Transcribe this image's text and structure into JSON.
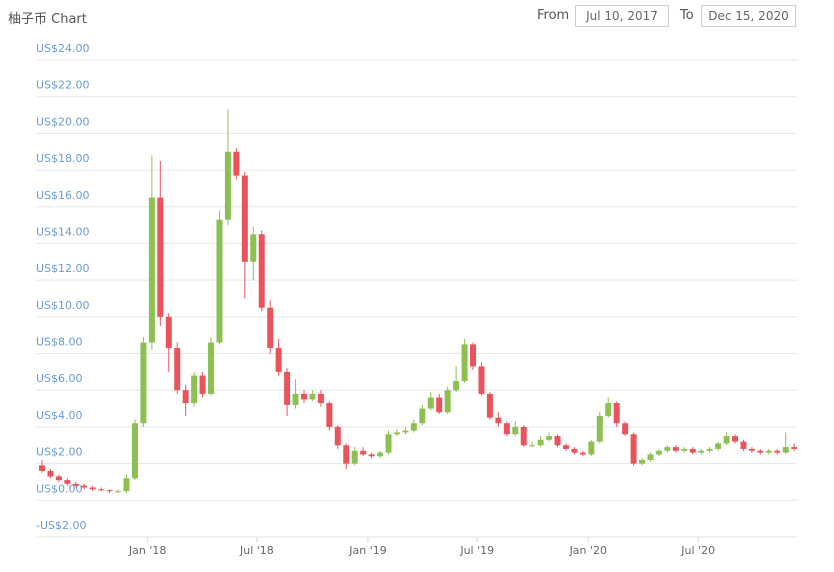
{
  "header": {
    "title": "柚子币 Chart",
    "from_label": "From",
    "from_value": "Jul 10, 2017",
    "to_label": "To",
    "to_value": "Dec 15, 2020"
  },
  "chart_data": {
    "type": "candlestick",
    "colors": {
      "up": "#8cc152",
      "down": "#e9545c"
    },
    "grid": true,
    "xlim": [
      "2017-07-10",
      "2020-12-15"
    ],
    "xticks": [
      {
        "value": "2018-01-01",
        "label": "Jan '18"
      },
      {
        "value": "2018-07-01",
        "label": "Jul '18"
      },
      {
        "value": "2019-01-01",
        "label": "Jan '19"
      },
      {
        "value": "2019-07-01",
        "label": "Jul '19"
      },
      {
        "value": "2020-01-01",
        "label": "Jan '20"
      },
      {
        "value": "2020-07-01",
        "label": "Jul '20"
      }
    ],
    "ylim": [
      -2,
      24
    ],
    "yticks": [
      {
        "value": -2,
        "label": "-US$2.00"
      },
      {
        "value": 0,
        "label": "US$0.00"
      },
      {
        "value": 2,
        "label": "US$2.00"
      },
      {
        "value": 4,
        "label": "US$4.00"
      },
      {
        "value": 6,
        "label": "US$6.00"
      },
      {
        "value": 8,
        "label": "US$8.00"
      },
      {
        "value": 10,
        "label": "US$10.00"
      },
      {
        "value": 12,
        "label": "US$12.00"
      },
      {
        "value": 14,
        "label": "US$14.00"
      },
      {
        "value": 16,
        "label": "US$16.00"
      },
      {
        "value": 18,
        "label": "US$18.00"
      },
      {
        "value": 20,
        "label": "US$20.00"
      },
      {
        "value": 22,
        "label": "US$22.00"
      },
      {
        "value": 24,
        "label": "US$24.00"
      }
    ],
    "x": [
      "2017-07-10",
      "2017-07-24",
      "2017-08-07",
      "2017-08-21",
      "2017-09-04",
      "2017-09-18",
      "2017-10-02",
      "2017-10-16",
      "2017-10-30",
      "2017-11-13",
      "2017-11-27",
      "2017-12-11",
      "2017-12-25",
      "2018-01-08",
      "2018-01-22",
      "2018-02-05",
      "2018-02-19",
      "2018-03-05",
      "2018-03-19",
      "2018-04-02",
      "2018-04-16",
      "2018-04-30",
      "2018-05-14",
      "2018-05-28",
      "2018-06-11",
      "2018-06-25",
      "2018-07-09",
      "2018-07-23",
      "2018-08-06",
      "2018-08-20",
      "2018-09-03",
      "2018-09-17",
      "2018-10-01",
      "2018-10-15",
      "2018-10-29",
      "2018-11-12",
      "2018-11-26",
      "2018-12-10",
      "2018-12-24",
      "2019-01-07",
      "2019-01-21",
      "2019-02-04",
      "2019-02-18",
      "2019-03-04",
      "2019-03-18",
      "2019-04-01",
      "2019-04-15",
      "2019-04-29",
      "2019-05-13",
      "2019-05-27",
      "2019-06-10",
      "2019-06-24",
      "2019-07-08",
      "2019-07-22",
      "2019-08-05",
      "2019-08-19",
      "2019-09-02",
      "2019-09-16",
      "2019-09-30",
      "2019-10-14",
      "2019-10-28",
      "2019-11-11",
      "2019-11-25",
      "2019-12-09",
      "2019-12-23",
      "2020-01-06",
      "2020-01-20",
      "2020-02-03",
      "2020-02-17",
      "2020-03-02",
      "2020-03-16",
      "2020-03-30",
      "2020-04-13",
      "2020-04-27",
      "2020-05-11",
      "2020-05-25",
      "2020-06-08",
      "2020-06-22",
      "2020-07-06",
      "2020-07-20",
      "2020-08-03",
      "2020-08-17",
      "2020-08-31",
      "2020-09-14",
      "2020-09-28",
      "2020-10-12",
      "2020-10-26",
      "2020-11-09",
      "2020-11-23",
      "2020-12-07"
    ],
    "open": [
      1.9,
      1.6,
      1.3,
      1.1,
      0.9,
      0.8,
      0.7,
      0.6,
      0.55,
      0.5,
      0.5,
      1.2,
      4.2,
      8.6,
      16.5,
      10.0,
      8.3,
      6.0,
      5.3,
      6.8,
      5.8,
      8.6,
      15.3,
      19.0,
      17.7,
      13.0,
      14.5,
      10.5,
      8.3,
      7.0,
      5.2,
      5.8,
      5.5,
      5.8,
      5.3,
      4.0,
      3.0,
      2.0,
      2.7,
      2.5,
      2.4,
      2.6,
      3.6,
      3.7,
      3.8,
      4.2,
      5.0,
      5.6,
      4.8,
      6.0,
      6.5,
      8.5,
      7.3,
      5.8,
      4.5,
      4.2,
      3.6,
      4.0,
      3.0,
      3.0,
      3.3,
      3.5,
      3.0,
      2.8,
      2.6,
      2.5,
      3.2,
      4.6,
      5.3,
      4.2,
      3.6,
      2.0,
      2.2,
      2.5,
      2.7,
      2.9,
      2.7,
      2.8,
      2.6,
      2.7,
      2.8,
      3.1,
      3.5,
      3.2,
      2.8,
      2.7,
      2.6,
      2.7,
      2.6,
      2.9
    ],
    "high": [
      2.2,
      1.7,
      1.4,
      1.2,
      1.0,
      0.9,
      0.8,
      0.7,
      0.6,
      0.6,
      1.4,
      4.4,
      8.9,
      18.8,
      18.5,
      10.2,
      8.6,
      6.3,
      7.0,
      7.0,
      8.9,
      15.8,
      21.3,
      19.2,
      17.9,
      14.9,
      14.7,
      10.9,
      8.8,
      7.2,
      6.6,
      6.0,
      6.0,
      6.0,
      5.4,
      4.1,
      3.1,
      2.9,
      2.9,
      2.6,
      2.7,
      3.8,
      3.9,
      4.0,
      4.4,
      5.2,
      5.9,
      5.8,
      6.2,
      7.3,
      8.8,
      8.6,
      7.5,
      5.9,
      4.8,
      4.3,
      4.3,
      4.1,
      3.2,
      3.5,
      3.7,
      3.6,
      3.1,
      2.9,
      2.7,
      3.3,
      4.8,
      5.6,
      5.4,
      4.3,
      3.7,
      2.3,
      2.6,
      2.8,
      3.0,
      3.0,
      2.9,
      2.9,
      2.8,
      2.9,
      3.2,
      3.7,
      3.6,
      3.3,
      2.9,
      2.8,
      2.8,
      2.8,
      3.7,
      3.1
    ],
    "low": [
      1.5,
      1.2,
      1.0,
      0.8,
      0.7,
      0.6,
      0.5,
      0.5,
      0.4,
      0.4,
      0.4,
      1.1,
      4.0,
      8.2,
      9.5,
      7.0,
      5.8,
      4.6,
      5.1,
      5.6,
      5.7,
      8.5,
      15.0,
      17.5,
      11.0,
      12.0,
      10.3,
      8.0,
      6.8,
      4.6,
      5.0,
      5.3,
      5.4,
      5.1,
      3.8,
      2.8,
      1.7,
      1.9,
      2.4,
      2.3,
      2.3,
      2.5,
      3.5,
      3.6,
      3.7,
      4.1,
      4.9,
      4.7,
      4.7,
      5.9,
      6.4,
      7.1,
      5.7,
      4.4,
      4.0,
      3.5,
      3.5,
      2.9,
      2.9,
      2.9,
      3.2,
      2.9,
      2.7,
      2.5,
      2.4,
      2.4,
      3.1,
      4.5,
      4.0,
      3.5,
      1.9,
      1.9,
      2.1,
      2.4,
      2.6,
      2.6,
      2.6,
      2.5,
      2.5,
      2.6,
      2.7,
      3.0,
      3.1,
      2.7,
      2.6,
      2.5,
      2.5,
      2.5,
      2.5,
      2.7
    ],
    "close": [
      1.6,
      1.3,
      1.1,
      0.9,
      0.8,
      0.7,
      0.6,
      0.55,
      0.5,
      0.5,
      1.2,
      4.2,
      8.6,
      16.5,
      10.0,
      8.3,
      6.0,
      5.3,
      6.8,
      5.8,
      8.6,
      15.3,
      19.0,
      17.7,
      13.0,
      14.5,
      10.5,
      8.3,
      7.0,
      5.2,
      5.8,
      5.5,
      5.8,
      5.3,
      4.0,
      3.0,
      2.0,
      2.7,
      2.5,
      2.4,
      2.6,
      3.6,
      3.7,
      3.8,
      4.2,
      5.0,
      5.6,
      4.8,
      6.0,
      6.5,
      8.5,
      7.3,
      5.8,
      4.5,
      4.2,
      3.6,
      4.0,
      3.0,
      3.0,
      3.3,
      3.5,
      3.0,
      2.8,
      2.6,
      2.5,
      3.2,
      4.6,
      5.3,
      4.2,
      3.6,
      2.0,
      2.2,
      2.5,
      2.7,
      2.9,
      2.7,
      2.8,
      2.6,
      2.7,
      2.8,
      3.1,
      3.5,
      3.2,
      2.8,
      2.7,
      2.6,
      2.7,
      2.6,
      2.9,
      2.8
    ]
  }
}
